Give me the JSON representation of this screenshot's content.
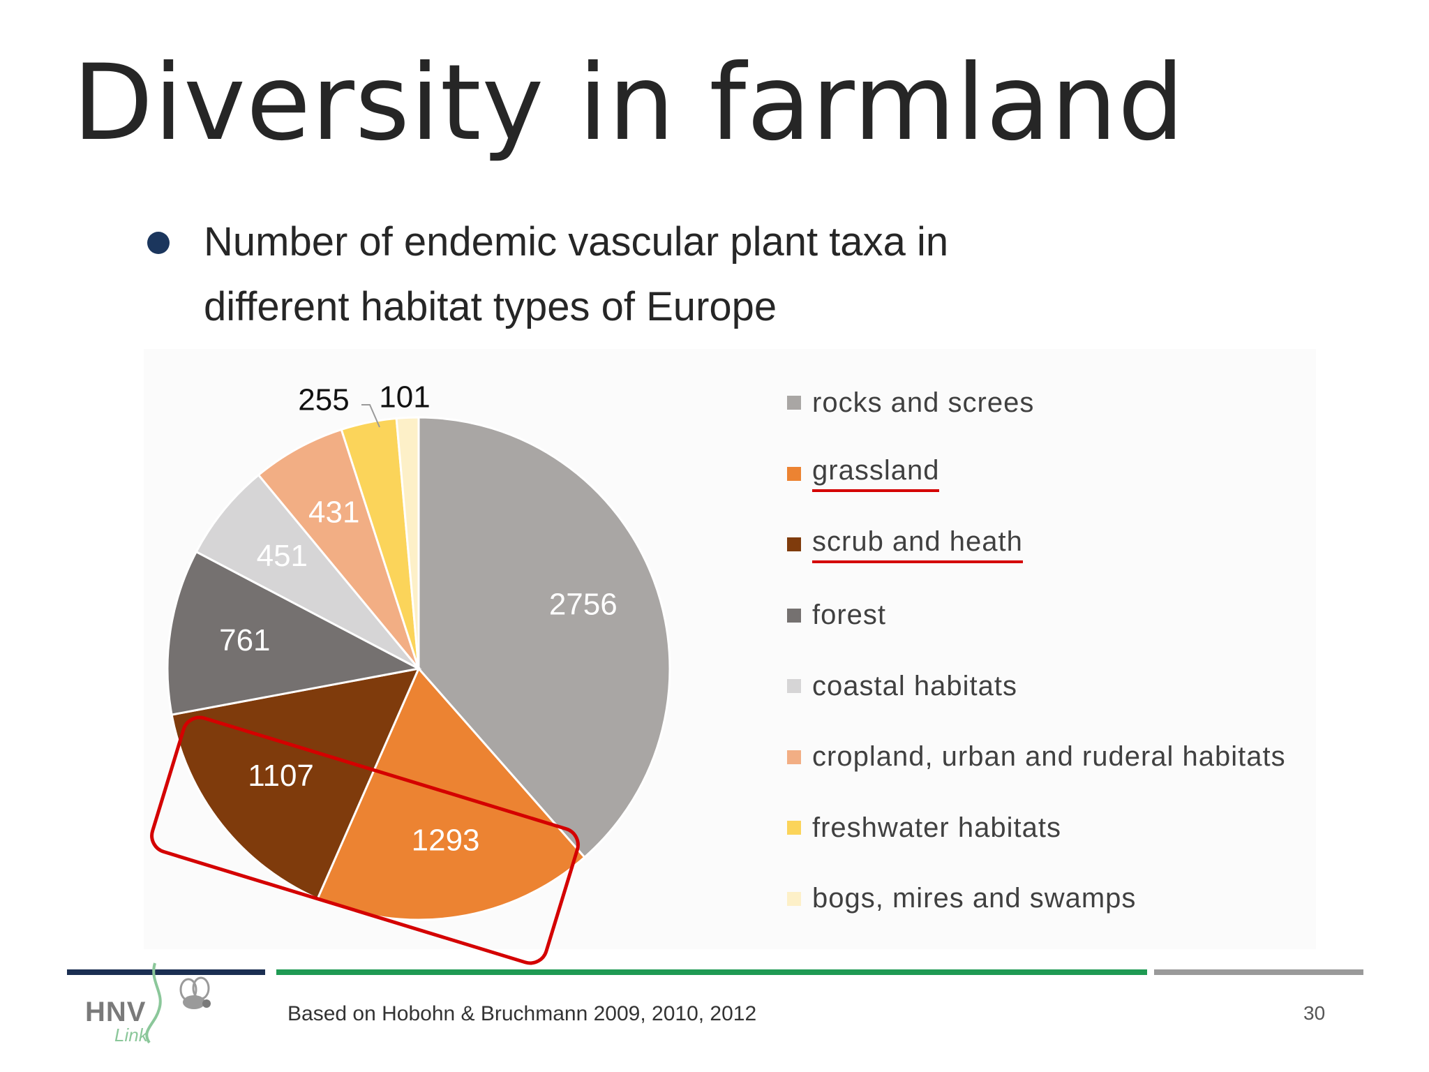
{
  "slide": {
    "title": "Diversity in farmland",
    "bullet_lines": [
      "Number of endemic vascular plant taxa in",
      "different habitat types of Europe"
    ],
    "citation": "Based on Hobohn & Bruchmann 2009, 2010, 2012",
    "page_number": "30",
    "logo": {
      "text": "HNV",
      "subtext": "Link"
    }
  },
  "chart_data": {
    "type": "pie",
    "title": "",
    "series": [
      {
        "name": "rocks and screes",
        "value": 2756,
        "color": "#a9a6a4",
        "label": "2756"
      },
      {
        "name": "grassland",
        "value": 1293,
        "color": "#ec8332",
        "label": "1293"
      },
      {
        "name": "scrub and heath",
        "value": 1107,
        "color": "#7f3b0c",
        "label": "1107"
      },
      {
        "name": "forest",
        "value": 761,
        "color": "#757170",
        "label": "761"
      },
      {
        "name": "coastal habitats",
        "value": 451,
        "color": "#d6d5d6",
        "label": "451"
      },
      {
        "name": "cropland, urban and ruderal habitats",
        "value": 431,
        "color": "#f2ae84",
        "label": "431"
      },
      {
        "name": "freshwater habitats",
        "value": 255,
        "color": "#fbd45a",
        "label": "255"
      },
      {
        "name": "bogs, mires and swamps",
        "value": 101,
        "color": "#fdf0c8",
        "label": "101"
      }
    ],
    "legend_position": "right",
    "annotations": {
      "underlined_legend_items": [
        "grassland",
        "scrub and heath"
      ],
      "highlighted_slices": [
        "scrub and heath",
        "grassland"
      ],
      "highlight_color": "#d40000"
    }
  },
  "colors": {
    "title_text": "#262626",
    "bullet_dot": "#1b365d",
    "accent_green": "#1f9a53",
    "accent_navy": "#1b2f52"
  }
}
